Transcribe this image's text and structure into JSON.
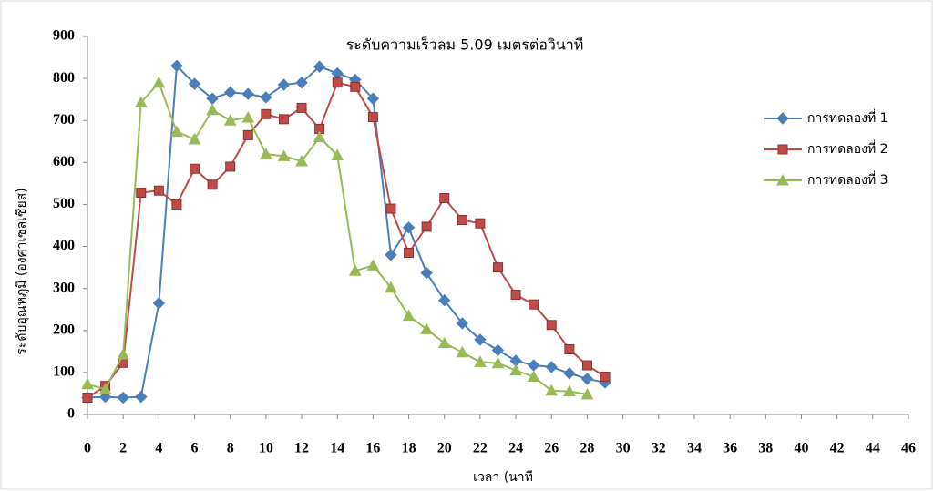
{
  "chart_data": {
    "type": "line",
    "title": "ระดับความเร็วลม 5.09 เมตรต่อวินาที",
    "x_label": "เวลา (นาที",
    "y_label": "ระดับอุณหภูมิ (องศาเซลเซียส)",
    "x": [
      0,
      1,
      2,
      3,
      4,
      5,
      6,
      7,
      8,
      9,
      10,
      11,
      12,
      13,
      14,
      15,
      16,
      17,
      18,
      19,
      20,
      21,
      22,
      23,
      24,
      25,
      26,
      27,
      28,
      29
    ],
    "series": [
      {
        "name": "การทดลองที่ 1",
        "color": "#4a7ebb",
        "marker": "diamond",
        "values": [
          40,
          42,
          40,
          42,
          265,
          830,
          787,
          752,
          767,
          763,
          755,
          785,
          790,
          828,
          812,
          797,
          752,
          380,
          445,
          337,
          272,
          217,
          178,
          153,
          128,
          117,
          113,
          98,
          85,
          76
        ]
      },
      {
        "name": "การทดลองที่ 2",
        "color": "#be4b48",
        "marker": "square",
        "values": [
          40,
          68,
          123,
          528,
          533,
          500,
          585,
          547,
          590,
          665,
          715,
          703,
          730,
          680,
          790,
          780,
          708,
          490,
          385,
          447,
          515,
          463,
          455,
          350,
          285,
          262,
          213,
          155,
          117,
          90
        ]
      },
      {
        "name": "การทดลองที่ 3",
        "color": "#98b954",
        "marker": "triangle",
        "values": [
          72,
          60,
          143,
          743,
          790,
          673,
          655,
          725,
          700,
          707,
          620,
          615,
          603,
          660,
          617,
          342,
          355,
          302,
          235,
          203,
          170,
          148,
          125,
          122,
          105,
          90,
          57,
          55,
          48,
          null
        ]
      }
    ],
    "xlim": [
      0,
      46
    ],
    "xticks": [
      0,
      2,
      4,
      6,
      8,
      10,
      12,
      14,
      16,
      18,
      20,
      22,
      24,
      26,
      28,
      30,
      32,
      34,
      36,
      38,
      40,
      42,
      44,
      46
    ],
    "ylim": [
      0,
      900
    ],
    "yticks": [
      0,
      100,
      200,
      300,
      400,
      500,
      600,
      700,
      800,
      900
    ],
    "legend": "right"
  }
}
